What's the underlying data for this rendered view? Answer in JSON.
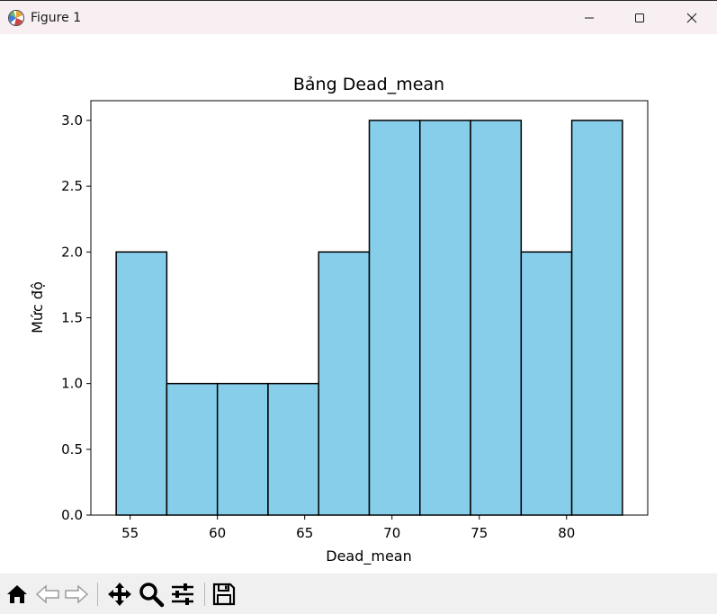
{
  "window": {
    "title": "Figure 1"
  },
  "toolbar": {
    "icons": [
      "home-icon",
      "back-icon",
      "forward-icon",
      "pan-icon",
      "zoom-icon",
      "configure-subplots-icon",
      "save-icon"
    ]
  },
  "colors": {
    "bar_fill": "#87ceeb",
    "bar_edge": "#000000"
  },
  "chart_data": {
    "type": "bar",
    "title": "Bảng Dead_mean",
    "xlabel": "Dead_mean",
    "ylabel": "Mức độ",
    "bin_edges": [
      54.2,
      57.1,
      60.0,
      62.9,
      65.8,
      68.7,
      71.6,
      74.5,
      77.4,
      80.3,
      83.2
    ],
    "values": [
      2,
      1,
      1,
      1,
      2,
      3,
      3,
      3,
      2,
      3
    ],
    "xlim": [
      52.75,
      84.65
    ],
    "ylim": [
      0,
      3.15
    ],
    "xticks": [
      55,
      60,
      65,
      70,
      75,
      80
    ],
    "xtick_labels": [
      "55",
      "60",
      "65",
      "70",
      "75",
      "80"
    ],
    "yticks": [
      0,
      0.5,
      1.0,
      1.5,
      2.0,
      2.5,
      3.0
    ],
    "ytick_labels": [
      "0.0",
      "0.5",
      "1.0",
      "1.5",
      "2.0",
      "2.5",
      "3.0"
    ],
    "grid": false
  }
}
